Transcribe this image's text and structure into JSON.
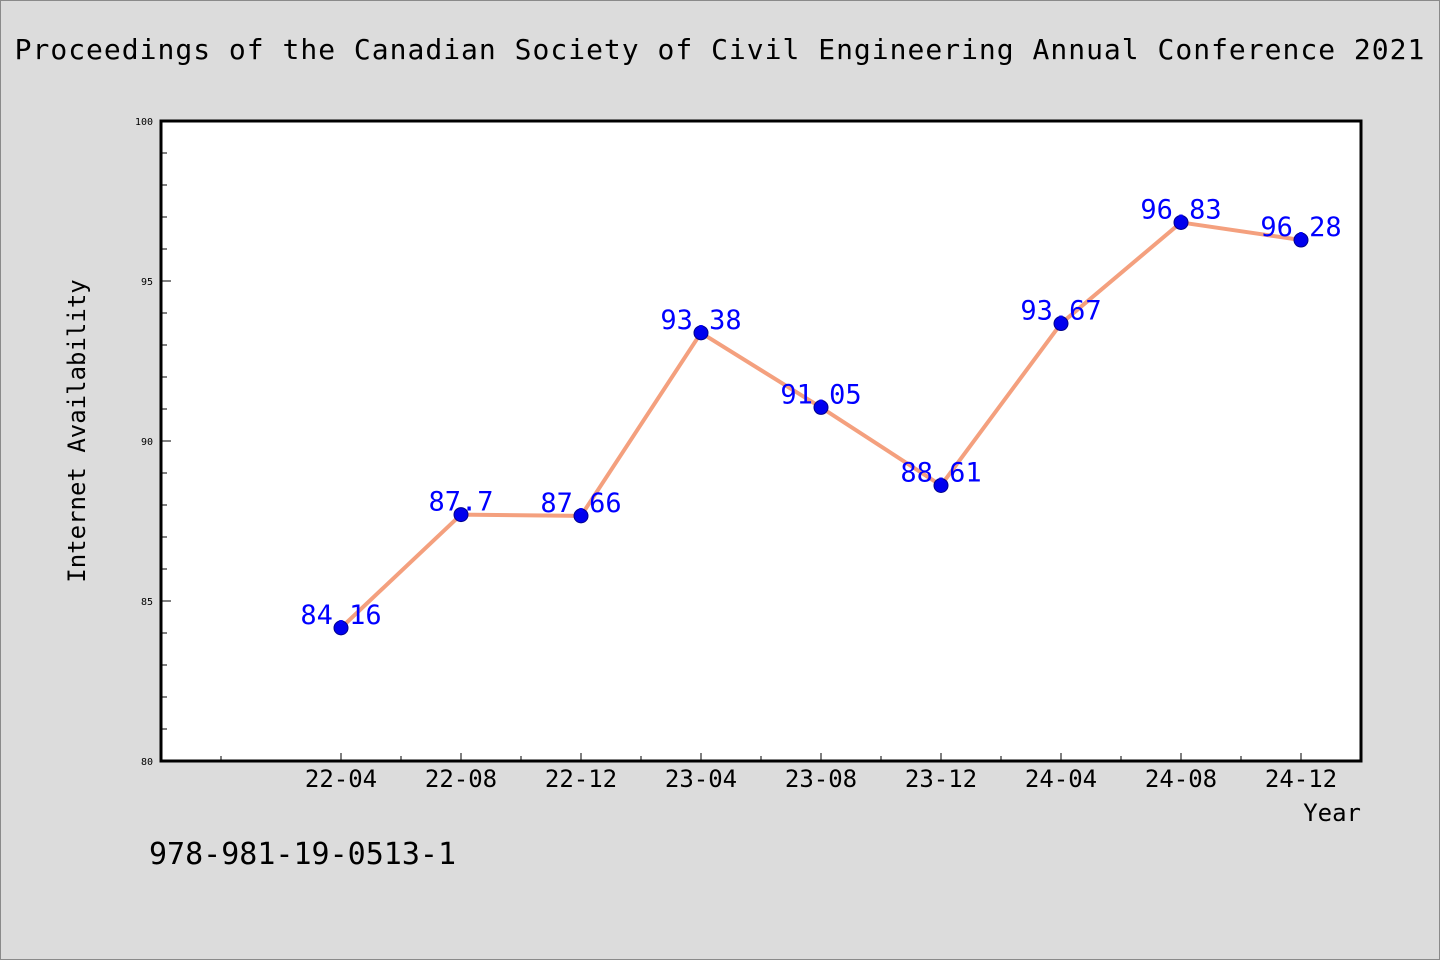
{
  "header": {
    "title": "Proceedings of the Canadian Society of Civil Engineering Annual Conference 2021"
  },
  "footer": {
    "isbn": "978-981-19-0513-1"
  },
  "colors": {
    "background": "#dcdcdc",
    "plot_background": "#ffffff",
    "line": "#f4a07e",
    "marker": "#0000ee",
    "data_label": "#0000ff"
  },
  "chart_data": {
    "type": "line",
    "title": "Proceedings of the Canadian Society of Civil Engineering Annual Conference 2021",
    "xlabel": "Year",
    "ylabel": "Internet Availability",
    "categories": [
      "22-04",
      "22-08",
      "22-12",
      "23-04",
      "23-08",
      "23-12",
      "24-04",
      "24-08",
      "24-12"
    ],
    "series": [
      {
        "values": [
          84.16,
          87.7,
          87.66,
          93.38,
          91.05,
          88.61,
          93.67,
          96.83,
          96.28
        ],
        "labels": [
          "84.16",
          "87.7",
          "87.66",
          "93.38",
          "91.05",
          "88.61",
          "93.67",
          "96.83",
          "96.28"
        ]
      }
    ],
    "ylim": [
      80,
      100
    ],
    "yticks": [
      "80",
      "85",
      "90",
      "95",
      "100"
    ],
    "grid": false,
    "legend": "none"
  }
}
